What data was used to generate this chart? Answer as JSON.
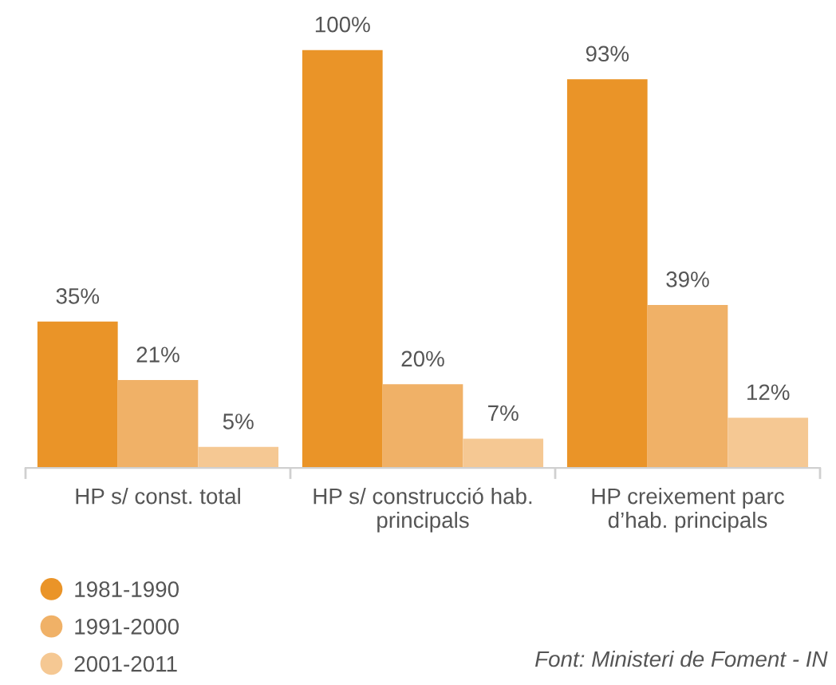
{
  "chart_data": {
    "type": "bar",
    "categories": [
      "HP s/ const. total",
      "HP s/ construcció hab. principals",
      "HP creixement parc d’hab. principals"
    ],
    "series": [
      {
        "name": "1981-1990",
        "color": "#ea9428",
        "values": [
          35,
          100,
          93
        ],
        "value_labels": [
          "35%",
          "100%",
          "93%"
        ]
      },
      {
        "name": "1991-2000",
        "color": "#f0b167",
        "values": [
          21,
          20,
          39
        ],
        "value_labels": [
          "21%",
          "20%",
          "39%"
        ]
      },
      {
        "name": "2001-2011",
        "color": "#f5c893",
        "values": [
          5,
          7,
          12
        ],
        "value_labels": [
          "5%",
          "7%",
          "12%"
        ]
      }
    ],
    "legend": "bottom left",
    "marker": "circle",
    "annotations": [
      "Font: Ministeri de Foment - IN"
    ]
  }
}
